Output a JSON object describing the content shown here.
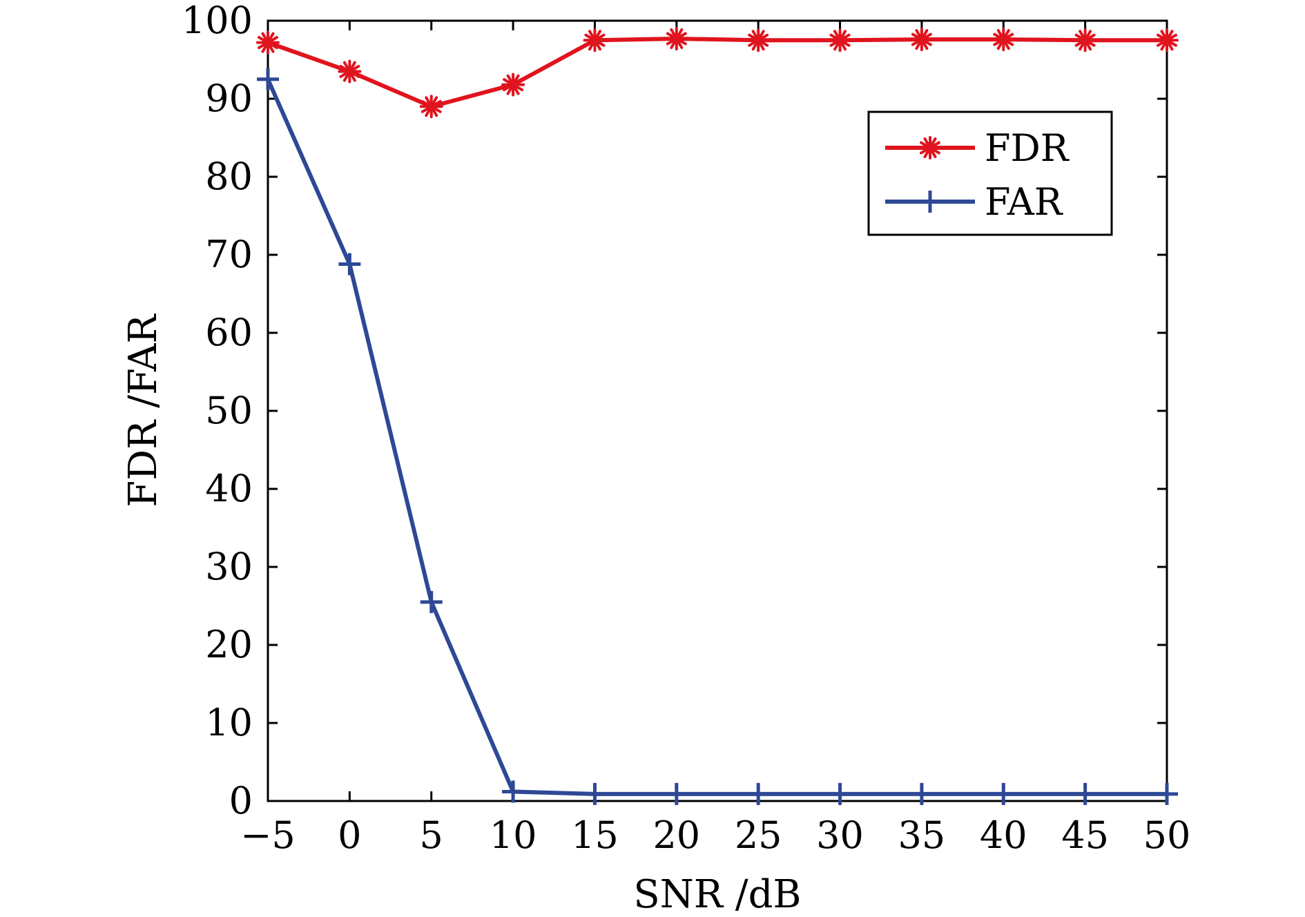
{
  "chart_data": {
    "type": "line",
    "title": "",
    "xlabel": "SNR /dB",
    "ylabel": "FDR /FAR",
    "xlim": [
      -5,
      50
    ],
    "ylim": [
      0,
      100
    ],
    "x_ticks": [
      -5,
      0,
      5,
      10,
      15,
      20,
      25,
      30,
      35,
      40,
      45,
      50
    ],
    "x_tick_labels": [
      "−5",
      "0",
      "5",
      "10",
      "15",
      "20",
      "25",
      "30",
      "35",
      "40",
      "45",
      "50"
    ],
    "y_ticks": [
      0,
      10,
      20,
      30,
      40,
      50,
      60,
      70,
      80,
      90,
      100
    ],
    "y_tick_labels": [
      "0",
      "10",
      "20",
      "30",
      "40",
      "50",
      "60",
      "70",
      "80",
      "90",
      "100"
    ],
    "x": [
      -5,
      0,
      5,
      10,
      15,
      20,
      25,
      30,
      35,
      40,
      45,
      50
    ],
    "series": [
      {
        "name": "FDR",
        "color": "#e0141e",
        "marker": "asterisk",
        "values": [
          97.2,
          93.5,
          89.0,
          91.8,
          97.5,
          97.7,
          97.5,
          97.5,
          97.6,
          97.6,
          97.5,
          97.5
        ]
      },
      {
        "name": "FAR",
        "color": "#2e4896",
        "marker": "plus",
        "values": [
          92.5,
          68.8,
          25.5,
          1.2,
          0.9,
          0.9,
          0.9,
          0.9,
          0.9,
          0.9,
          0.9,
          0.9
        ]
      }
    ],
    "grid": false,
    "legend_position": "top-right"
  }
}
